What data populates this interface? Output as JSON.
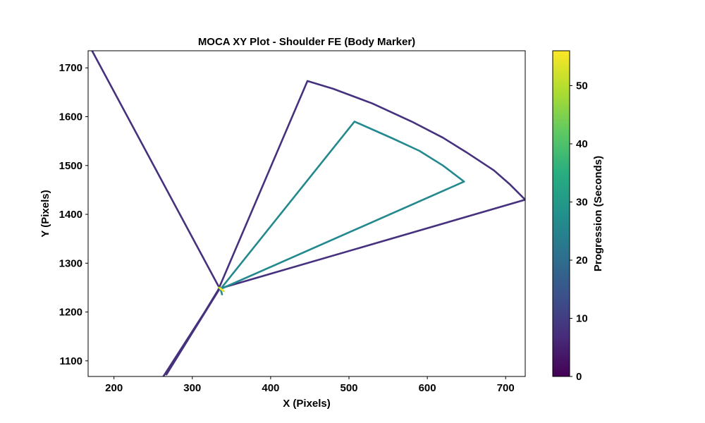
{
  "chart_data": {
    "type": "line",
    "title": "MOCA XY Plot - Shoulder FE (Body Marker)",
    "xlabel": "X (Pixels)",
    "ylabel": "Y (Pixels)",
    "xlim": [
      167,
      725
    ],
    "ylim": [
      1068,
      1735
    ],
    "x_ticks": [
      200,
      300,
      400,
      500,
      600,
      700
    ],
    "y_ticks": [
      1100,
      1200,
      1300,
      1400,
      1500,
      1600,
      1700
    ],
    "grid": false,
    "colorbar": {
      "label": "Progression (Seconds)",
      "range": [
        0,
        56
      ],
      "ticks": [
        0,
        10,
        20,
        30,
        40,
        50
      ],
      "colormap": "viridis"
    },
    "series": [
      {
        "color": "#46317e",
        "time": 6,
        "points": [
          [
            172,
            1735
          ],
          [
            335,
            1248
          ],
          [
            267,
            1072
          ],
          [
            333,
            1245
          ],
          [
            447,
            1673
          ],
          [
            480,
            1657
          ],
          [
            530,
            1627
          ],
          [
            580,
            1590
          ],
          [
            620,
            1557
          ],
          [
            650,
            1527
          ],
          [
            685,
            1490
          ],
          [
            705,
            1462
          ],
          [
            725,
            1430
          ],
          [
            335,
            1248
          ],
          [
            263,
            1068
          ]
        ]
      },
      {
        "color": "#23898e",
        "time": 28,
        "points": [
          [
            336,
            1247
          ],
          [
            507,
            1590
          ],
          [
            555,
            1556
          ],
          [
            590,
            1530
          ],
          [
            620,
            1500
          ],
          [
            647,
            1467
          ],
          [
            336,
            1247
          ],
          [
            338,
            1236
          ]
        ]
      },
      {
        "color": "#b5de2b",
        "time": 50,
        "points": [
          [
            334,
            1250
          ],
          [
            340,
            1243
          ]
        ]
      },
      {
        "color": "#fde725",
        "time": 55,
        "points": [
          [
            336,
            1248
          ],
          [
            339,
            1244
          ]
        ]
      }
    ]
  }
}
